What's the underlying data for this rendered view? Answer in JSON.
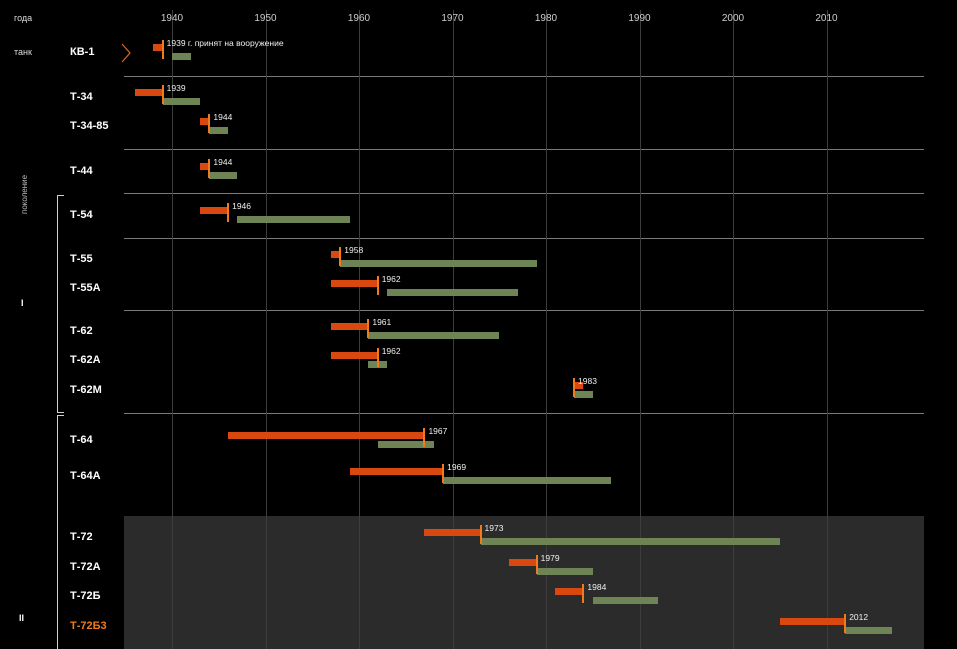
{
  "header": {
    "years_label": "года",
    "tank_label": "танк"
  },
  "chart_data": {
    "type": "bar",
    "x_ticks": [
      1940,
      1950,
      1960,
      1970,
      1980,
      1990,
      2000,
      2010
    ],
    "xlim": [
      1934,
      2019
    ],
    "tanks": [
      {
        "name": "КВ-1",
        "dev": [
          1938,
          1939
        ],
        "year": 1939,
        "label": "1939 г. принят на вооружение",
        "prod": [
          1940,
          1942
        ],
        "highlight": false
      },
      {
        "name": "Т-34",
        "dev": [
          1936,
          1939
        ],
        "year": 1939,
        "label": "1939",
        "prod": [
          1939,
          1943
        ],
        "highlight": false
      },
      {
        "name": "Т-34-85",
        "dev": [
          1943,
          1944
        ],
        "year": 1944,
        "label": "1944",
        "prod": [
          1944,
          1946
        ],
        "highlight": false
      },
      {
        "name": "Т-44",
        "dev": [
          1943,
          1944
        ],
        "year": 1944,
        "label": "1944",
        "prod": [
          1944,
          1947
        ],
        "highlight": false
      },
      {
        "name": "Т-54",
        "dev": [
          1943,
          1946
        ],
        "year": 1946,
        "label": "1946",
        "prod": [
          1947,
          1959
        ],
        "highlight": false
      },
      {
        "name": "Т-55",
        "dev": [
          1957,
          1958
        ],
        "year": 1958,
        "label": "1958",
        "prod": [
          1958,
          1979
        ],
        "highlight": false
      },
      {
        "name": "Т-55А",
        "dev": [
          1957,
          1962
        ],
        "year": 1962,
        "label": "1962",
        "prod": [
          1963,
          1977
        ],
        "highlight": false
      },
      {
        "name": "Т-62",
        "dev": [
          1957,
          1961
        ],
        "year": 1961,
        "label": "1961",
        "prod": [
          1961,
          1975
        ],
        "highlight": false
      },
      {
        "name": "Т-62А",
        "dev": [
          1957,
          1962
        ],
        "year": 1962,
        "label": "1962",
        "prod": [
          1961,
          1963
        ],
        "highlight": false
      },
      {
        "name": "Т-62М",
        "dev": [
          1983,
          1984
        ],
        "year": 1983,
        "label": "1983",
        "prod": [
          1983,
          1985
        ],
        "highlight": false
      },
      {
        "name": "Т-64",
        "dev": [
          1946,
          1967
        ],
        "year": 1967,
        "label": "1967",
        "prod": [
          1962,
          1968
        ],
        "highlight": false
      },
      {
        "name": "Т-64А",
        "dev": [
          1959,
          1969
        ],
        "year": 1969,
        "label": "1969",
        "prod": [
          1969,
          1987
        ],
        "highlight": false
      },
      {
        "name": "Т-72",
        "dev": [
          1967,
          1973
        ],
        "year": 1973,
        "label": "1973",
        "prod": [
          1973,
          2005
        ],
        "highlight": false
      },
      {
        "name": "Т-72А",
        "dev": [
          1976,
          1979
        ],
        "year": 1979,
        "label": "1979",
        "prod": [
          1979,
          1985
        ],
        "highlight": false
      },
      {
        "name": "Т-72Б",
        "dev": [
          1981,
          1984
        ],
        "year": 1984,
        "label": "1984",
        "prod": [
          1985,
          1992
        ],
        "highlight": false
      },
      {
        "name": "Т-72Б3",
        "dev": [
          2005,
          2012
        ],
        "year": 2012,
        "label": "2012",
        "prod": [
          2012,
          2017
        ],
        "highlight": true
      }
    ],
    "generation_word": "поколение",
    "generations": [
      "I",
      "II"
    ]
  }
}
